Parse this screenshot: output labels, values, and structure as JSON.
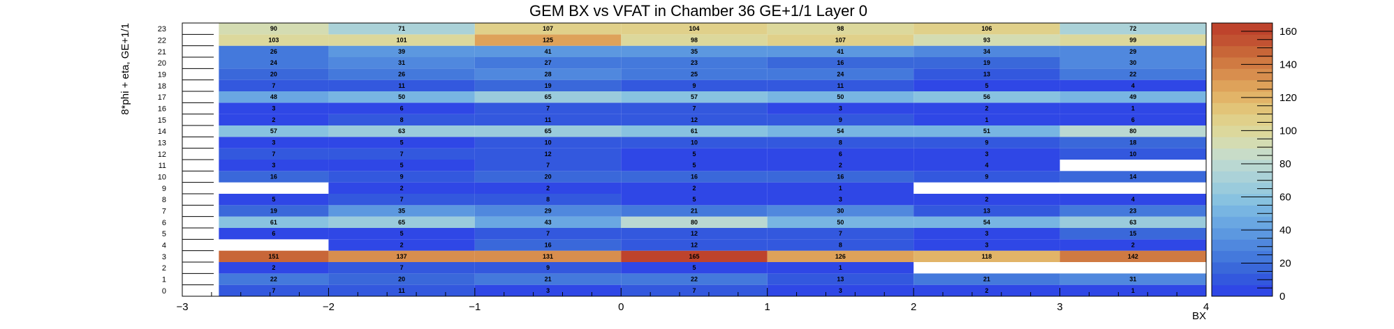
{
  "chart_data": {
    "type": "heatmap",
    "title": "GEM BX vs VFAT in Chamber 36 GE+1/1 Layer 0",
    "xlabel": "BX",
    "ylabel": "8*phi + eta, GE+1/1",
    "xlim": [
      -3,
      4
    ],
    "ylim": [
      0,
      24
    ],
    "x_ticks": [
      "−3",
      "−2",
      "−1",
      "0",
      "1",
      "2",
      "3",
      "4"
    ],
    "x_bins": [
      -2.75,
      -2,
      -1,
      0,
      1,
      2,
      3
    ],
    "y_bins": [
      0,
      1,
      2,
      3,
      4,
      5,
      6,
      7,
      8,
      9,
      10,
      11,
      12,
      13,
      14,
      15,
      16,
      17,
      18,
      19,
      20,
      21,
      22,
      23
    ],
    "z_range": [
      0,
      165
    ],
    "z_ticks": [
      0,
      20,
      40,
      60,
      80,
      100,
      120,
      140,
      160
    ],
    "values": [
      [
        7,
        11,
        3,
        7,
        3,
        2,
        1
      ],
      [
        22,
        20,
        21,
        22,
        13,
        21,
        31
      ],
      [
        2,
        7,
        9,
        5,
        1,
        null,
        null
      ],
      [
        151,
        137,
        131,
        165,
        126,
        118,
        142
      ],
      [
        null,
        2,
        16,
        12,
        8,
        3,
        2
      ],
      [
        6,
        5,
        7,
        12,
        7,
        3,
        15
      ],
      [
        61,
        65,
        43,
        80,
        50,
        54,
        63
      ],
      [
        19,
        35,
        29,
        21,
        30,
        13,
        23
      ],
      [
        5,
        7,
        8,
        5,
        3,
        2,
        4
      ],
      [
        null,
        2,
        2,
        2,
        1,
        null,
        null
      ],
      [
        16,
        9,
        20,
        16,
        16,
        9,
        14
      ],
      [
        3,
        5,
        7,
        5,
        2,
        4,
        null
      ],
      [
        7,
        7,
        12,
        5,
        6,
        3,
        10
      ],
      [
        3,
        5,
        10,
        10,
        8,
        9,
        18
      ],
      [
        57,
        63,
        65,
        61,
        54,
        51,
        80
      ],
      [
        2,
        8,
        11,
        12,
        9,
        1,
        6
      ],
      [
        3,
        6,
        7,
        7,
        3,
        2,
        1
      ],
      [
        48,
        50,
        65,
        57,
        50,
        56,
        49
      ],
      [
        7,
        11,
        19,
        9,
        11,
        5,
        4
      ],
      [
        20,
        26,
        28,
        25,
        24,
        13,
        22
      ],
      [
        24,
        31,
        27,
        23,
        16,
        19,
        30
      ],
      [
        26,
        39,
        41,
        35,
        41,
        34,
        29
      ],
      [
        103,
        101,
        125,
        98,
        107,
        93,
        99
      ],
      [
        90,
        71,
        107,
        104,
        98,
        106,
        72
      ]
    ],
    "palette": [
      "#2f47e6",
      "#3358de",
      "#3a68da",
      "#4479dc",
      "#5088de",
      "#5c98e0",
      "#6aa7e2",
      "#78b5e2",
      "#88c2e0",
      "#9acbdc",
      "#abd2d8",
      "#bad8d2",
      "#c8dcc8",
      "#d4dcb2",
      "#dcd89c",
      "#e0d08a",
      "#e2c478",
      "#e2b468",
      "#dea25a",
      "#d88e4e",
      "#d07a42",
      "#c86638",
      "#c25232",
      "#be432c"
    ],
    "grid": false,
    "colorbar": "right"
  }
}
